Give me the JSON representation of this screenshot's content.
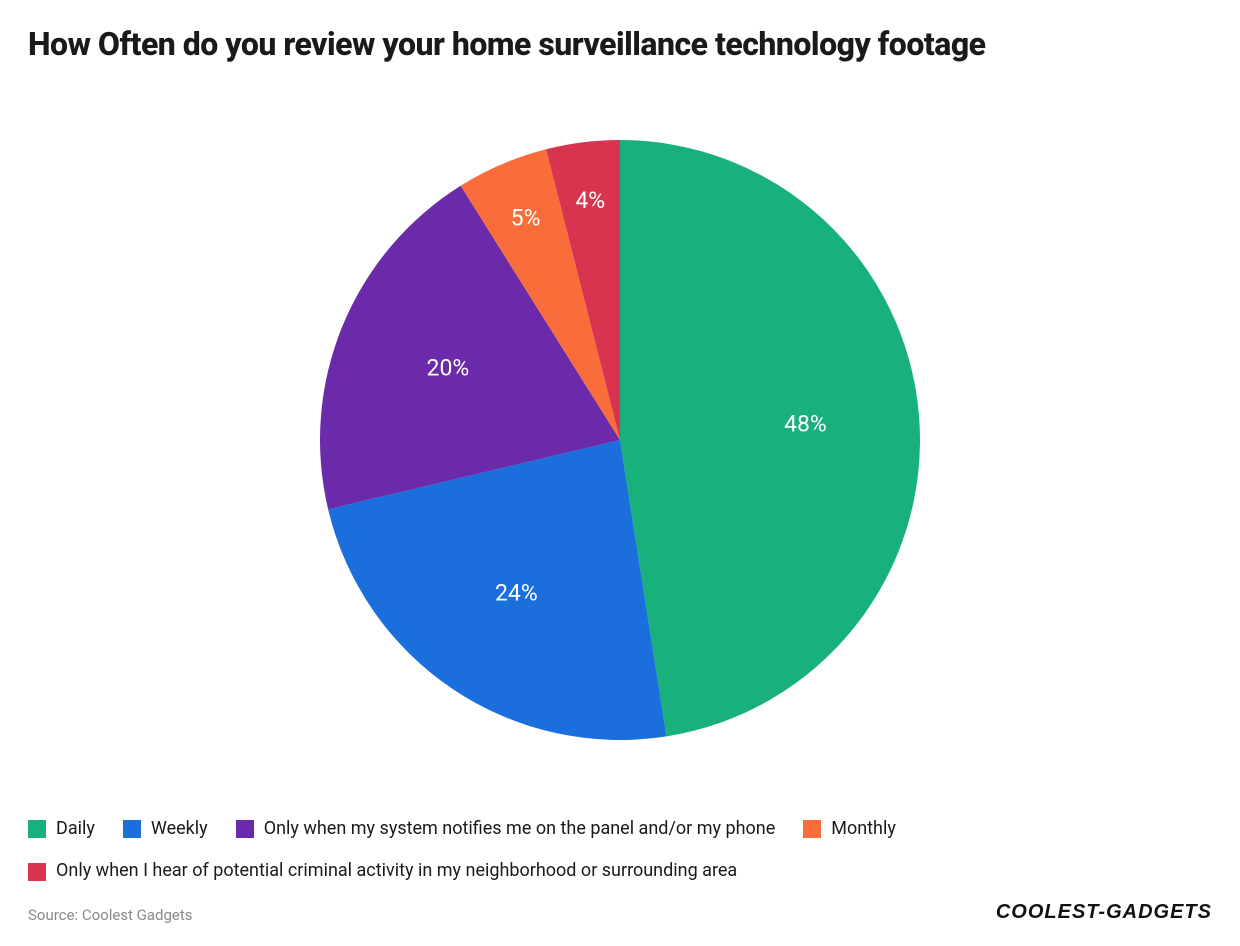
{
  "chart": {
    "type": "pie",
    "title": "How Often do you review your home surveillance technology footage",
    "title_fontsize": 32,
    "background_color": "#ffffff",
    "label_suffix": "%",
    "label_color": "#ffffff",
    "label_fontsize": 23,
    "radius": 300,
    "start_angle_deg": -90,
    "slices": [
      {
        "label": "Daily",
        "value": 48,
        "color": "#18b17b",
        "display": "48%"
      },
      {
        "label": "Weekly",
        "value": 24,
        "color": "#1a6fdd",
        "display": "24%"
      },
      {
        "label": "Only when my system notifies me on the panel and/or my phone",
        "value": 20,
        "color": "#6a2aaa",
        "display": "20%"
      },
      {
        "label": "Monthly",
        "value": 5,
        "color": "#f86d3a",
        "display": "5%"
      },
      {
        "label": "Only when I hear of potential criminal activity in my neighborhood or surrounding area",
        "value": 4,
        "color": "#d8344f",
        "display": "4%"
      }
    ]
  },
  "source_text": "Source: Coolest Gadgets",
  "brand": {
    "part1": "Coolest",
    "dash": "-",
    "part2": "Gadgets"
  }
}
